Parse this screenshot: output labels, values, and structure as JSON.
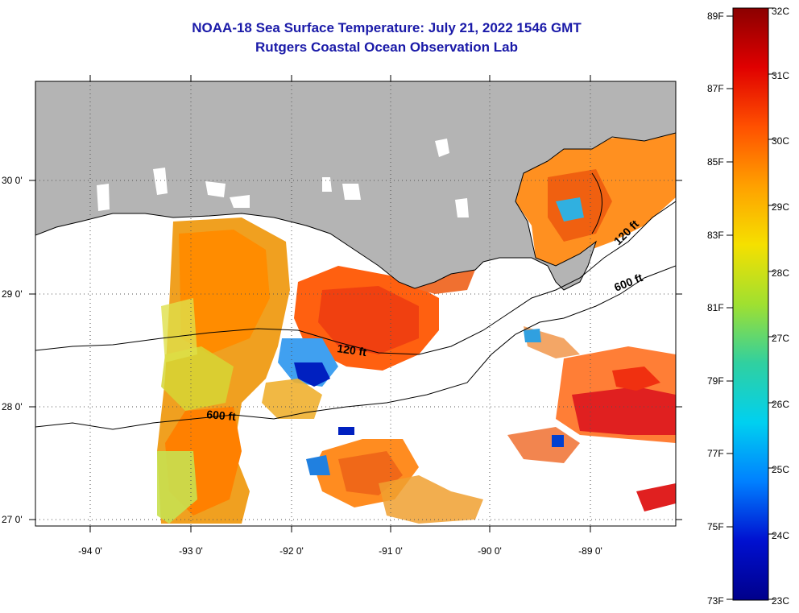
{
  "header": {
    "title": "NOAA-18 Sea Surface Temperature:  July 21, 2022 1546 GMT",
    "subtitle": "Rutgers Coastal Ocean Observation Lab"
  },
  "map": {
    "lon_ticks": [
      "-94 0'",
      "-93 0'",
      "-92 0'",
      "-91 0'",
      "-90 0'",
      "-89 0'"
    ],
    "lat_ticks": [
      "30 0'",
      "29 0'",
      "28 0'",
      "27 0'"
    ],
    "contours": [
      "120 ft",
      "120 ft",
      "600 ft",
      "600 ft"
    ],
    "colors": {
      "land": "#b4b4b4",
      "cloud": "#ffffff",
      "gridline": "#555555"
    }
  },
  "colorbar": {
    "fahrenheit": [
      "89F",
      "87F",
      "85F",
      "83F",
      "81F",
      "79F",
      "77F",
      "75F",
      "73F"
    ],
    "celsius": [
      "32C",
      "31C",
      "30C",
      "29C",
      "28C",
      "27C",
      "26C",
      "25C",
      "24C",
      "23C"
    ],
    "gradient": [
      "#8b0000",
      "#e00000",
      "#ff5000",
      "#ffa000",
      "#f5e000",
      "#a0e030",
      "#30d0a0",
      "#00d0f0",
      "#0080ff",
      "#0010d0",
      "#00008b"
    ]
  }
}
